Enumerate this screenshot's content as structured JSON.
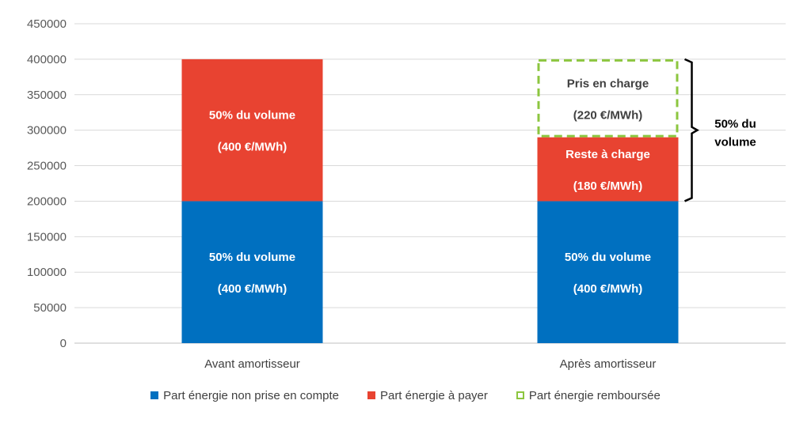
{
  "chart_data": {
    "type": "bar",
    "stacked": true,
    "categories": [
      "Avant amortisseur",
      "Après amortisseur"
    ],
    "yticks": [
      "0",
      "50000",
      "100000",
      "150000",
      "200000",
      "250000",
      "300000",
      "350000",
      "400000",
      "450000"
    ],
    "ylim": [
      0,
      450000
    ],
    "grid": true,
    "legend_position": "bottom",
    "series": [
      {
        "name": "Part énergie non prise en compte",
        "color": "#0070C0",
        "style": "solid",
        "values": [
          200000,
          200000
        ]
      },
      {
        "name": "Part énergie à payer",
        "color": "#E84331",
        "style": "solid",
        "values": [
          200000,
          90000
        ]
      },
      {
        "name": "Part énergie remboursée",
        "color": "#8CC63F",
        "style": "dashed",
        "values": [
          0,
          110000
        ]
      }
    ],
    "segment_labels": [
      {
        "category": 0,
        "series": 0,
        "line1": "50% du volume",
        "line2": "(400 €/MWh)",
        "color": "#FFFFFF"
      },
      {
        "category": 0,
        "series": 1,
        "line1": "50% du volume",
        "line2": "(400 €/MWh)",
        "color": "#FFFFFF"
      },
      {
        "category": 1,
        "series": 0,
        "line1": "50% du volume",
        "line2": "(400 €/MWh)",
        "color": "#FFFFFF"
      },
      {
        "category": 1,
        "series": 1,
        "line1": "Reste à charge",
        "line2": "(180 €/MWh)",
        "color": "#FFFFFF"
      },
      {
        "category": 1,
        "series": 2,
        "line1": "Pris en charge",
        "line2": "(220 €/MWh)",
        "color": "#404040"
      }
    ],
    "annotation": {
      "line1": "50% du",
      "line2": "volume",
      "from": 200000,
      "to": 400000,
      "category": 1
    }
  }
}
